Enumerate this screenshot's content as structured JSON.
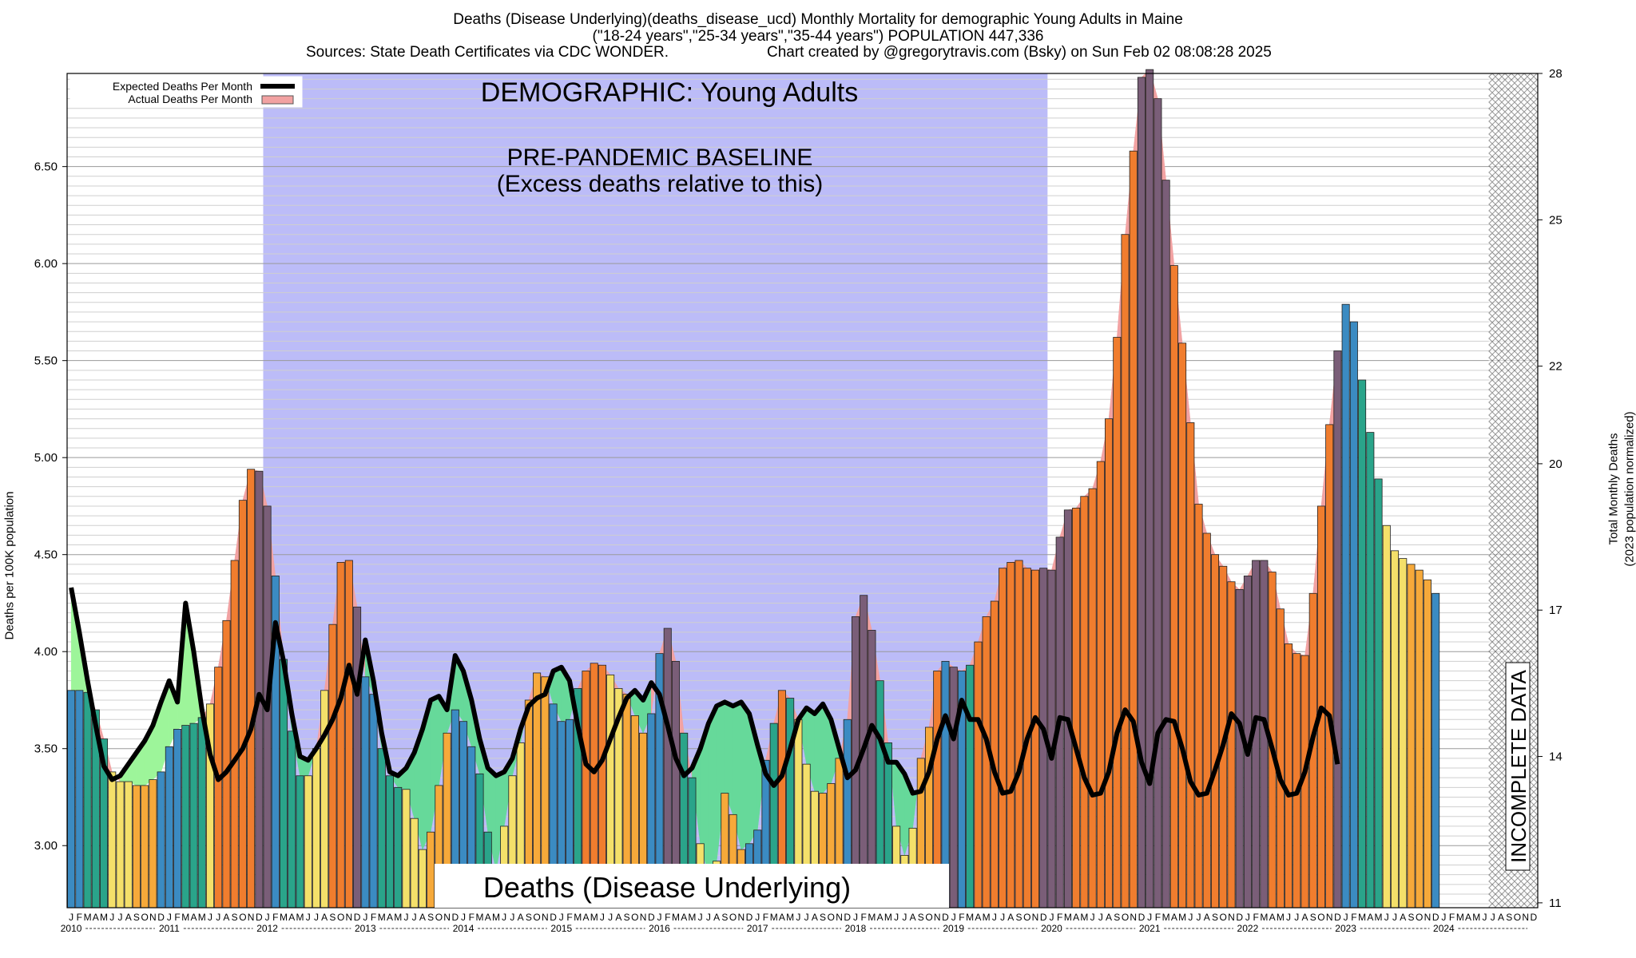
{
  "header": {
    "title_line1": "Deaths (Disease Underlying)(deaths_disease_ucd) Monthly Mortality for demographic Young Adults in Maine",
    "title_line2": "(\"18-24 years\",\"25-34 years\",\"35-44 years\") POPULATION 447,336",
    "sources": "Sources: State Death Certificates via CDC WONDER.",
    "credit": "Chart created by @gregorytravis.com (Bsky) on Sun Feb 02 08:08:28 2025"
  },
  "chart_data": {
    "type": "bar",
    "ylabel": "Deaths per 100K population",
    "y2label_line1": "Total Monthly Deaths",
    "y2label_line2": "(2023 population normalized)",
    "ylim": [
      2.68,
      6.98
    ],
    "y2lim": [
      10.9,
      28.0
    ],
    "yticks": [
      "3.00",
      "3.50",
      "4.00",
      "4.50",
      "5.00",
      "5.50",
      "6.00",
      "6.50"
    ],
    "y2ticks": [
      "11",
      "14",
      "17",
      "20",
      "22",
      "25",
      "28"
    ],
    "month_letters": [
      "J",
      "F",
      "M",
      "A",
      "M",
      "J",
      "J",
      "A",
      "S",
      "O",
      "N",
      "D"
    ],
    "years": [
      "2010",
      "2011",
      "2012",
      "2013",
      "2014",
      "2015",
      "2016",
      "2017",
      "2018",
      "2019",
      "2020",
      "2021",
      "2022",
      "2023",
      "2024"
    ],
    "legend": {
      "expected": "Expected Deaths Per Month",
      "actual": "Actual Deaths Per Month"
    },
    "overlay_demographic": "DEMOGRAPHIC: Young Adults",
    "overlay_baseline_line1": "PRE-PANDEMIC BASELINE",
    "overlay_baseline_line2": "(Excess deaths relative to this)",
    "bottom_label": "Deaths (Disease Underlying)",
    "incomplete_label": "INCOMPLETE DATA",
    "baseline_range": [
      "2012-01",
      "2019-12"
    ],
    "incomplete_from": "2024-07",
    "colors": {
      "baseline_band": "#bcbcf8",
      "excess_fill": "#f2a2a2",
      "deficit_fill": "#66d99a",
      "deficit_fill_early": "#9df59a",
      "expected_line": "#000000",
      "winter": "#3b8bc2",
      "spring": "#2aa48a",
      "summer": "#f4e06a",
      "fall": "#f6a93a",
      "excess_high": "#f07d2e",
      "excess_winter": "#7a5e78"
    },
    "actual": [
      3.8,
      3.8,
      3.79,
      3.7,
      3.55,
      3.38,
      3.33,
      3.33,
      3.31,
      3.31,
      3.34,
      3.38,
      3.51,
      3.6,
      3.62,
      3.63,
      3.66,
      3.73,
      3.92,
      4.16,
      4.47,
      4.78,
      4.94,
      4.93,
      4.75,
      4.39,
      3.96,
      3.59,
      3.36,
      3.36,
      3.5,
      3.8,
      4.14,
      4.46,
      4.47,
      4.23,
      3.87,
      3.78,
      3.5,
      3.36,
      3.3,
      3.29,
      3.14,
      2.98,
      3.07,
      3.31,
      3.58,
      3.7,
      3.64,
      3.51,
      3.37,
      3.07,
      2.87,
      3.1,
      3.36,
      3.53,
      3.75,
      3.89,
      3.87,
      3.73,
      3.64,
      3.65,
      3.81,
      3.9,
      3.94,
      3.93,
      3.88,
      3.81,
      3.78,
      3.67,
      3.58,
      3.68,
      3.99,
      4.12,
      3.95,
      3.58,
      3.35,
      3.01,
      2.85,
      2.92,
      3.27,
      3.16,
      2.98,
      3.01,
      3.08,
      3.44,
      3.63,
      3.8,
      3.76,
      3.65,
      3.42,
      3.28,
      3.27,
      3.32,
      3.45,
      3.65,
      4.18,
      4.29,
      4.11,
      3.85,
      3.53,
      3.1,
      2.95,
      3.09,
      3.45,
      3.61,
      3.9,
      3.95,
      3.92,
      3.9,
      3.93,
      4.05,
      4.18,
      4.26,
      4.43,
      4.46,
      4.47,
      4.43,
      4.42,
      4.43,
      4.42,
      4.59,
      4.73,
      4.74,
      4.8,
      4.84,
      4.98,
      5.2,
      5.62,
      6.15,
      6.58,
      6.96,
      7.0,
      6.85,
      6.43,
      5.99,
      5.59,
      5.18,
      4.76,
      4.61,
      4.5,
      4.44,
      4.36,
      4.32,
      4.39,
      4.47,
      4.47,
      4.41,
      4.22,
      4.04,
      3.99,
      3.98,
      4.3,
      4.75,
      5.17,
      5.55,
      5.79,
      5.7,
      5.4,
      5.13,
      4.89,
      4.65,
      4.52,
      4.48,
      4.45,
      4.42,
      4.37,
      4.3
    ],
    "expected": [
      4.33,
      4.1,
      3.85,
      3.62,
      3.41,
      3.34,
      3.36,
      3.42,
      3.48,
      3.54,
      3.62,
      3.74,
      3.85,
      3.74,
      4.25,
      4.0,
      3.7,
      3.47,
      3.34,
      3.38,
      3.44,
      3.5,
      3.6,
      3.78,
      3.7,
      4.15,
      3.95,
      3.68,
      3.46,
      3.44,
      3.5,
      3.57,
      3.65,
      3.76,
      3.93,
      3.78,
      4.06,
      3.85,
      3.58,
      3.38,
      3.36,
      3.4,
      3.48,
      3.6,
      3.75,
      3.77,
      3.7,
      3.98,
      3.9,
      3.75,
      3.55,
      3.4,
      3.36,
      3.38,
      3.45,
      3.6,
      3.72,
      3.76,
      3.78,
      3.9,
      3.92,
      3.85,
      3.62,
      3.42,
      3.38,
      3.44,
      3.55,
      3.66,
      3.76,
      3.8,
      3.75,
      3.84,
      3.78,
      3.62,
      3.45,
      3.36,
      3.4,
      3.5,
      3.63,
      3.72,
      3.74,
      3.72,
      3.74,
      3.68,
      3.52,
      3.37,
      3.31,
      3.36,
      3.5,
      3.65,
      3.71,
      3.68,
      3.73,
      3.65,
      3.5,
      3.35,
      3.39,
      3.5,
      3.62,
      3.55,
      3.43,
      3.43,
      3.37,
      3.27,
      3.28,
      3.38,
      3.55,
      3.67,
      3.55,
      3.75,
      3.65,
      3.65,
      3.55,
      3.38,
      3.27,
      3.28,
      3.38,
      3.55,
      3.66,
      3.6,
      3.45,
      3.66,
      3.65,
      3.5,
      3.35,
      3.26,
      3.27,
      3.38,
      3.58,
      3.7,
      3.64,
      3.43,
      3.32,
      3.58,
      3.65,
      3.64,
      3.5,
      3.33,
      3.26,
      3.27,
      3.39,
      3.52,
      3.68,
      3.63,
      3.47,
      3.66,
      3.65,
      3.5,
      3.34,
      3.26,
      3.27,
      3.38,
      3.56,
      3.71,
      3.67,
      3.42
    ]
  }
}
